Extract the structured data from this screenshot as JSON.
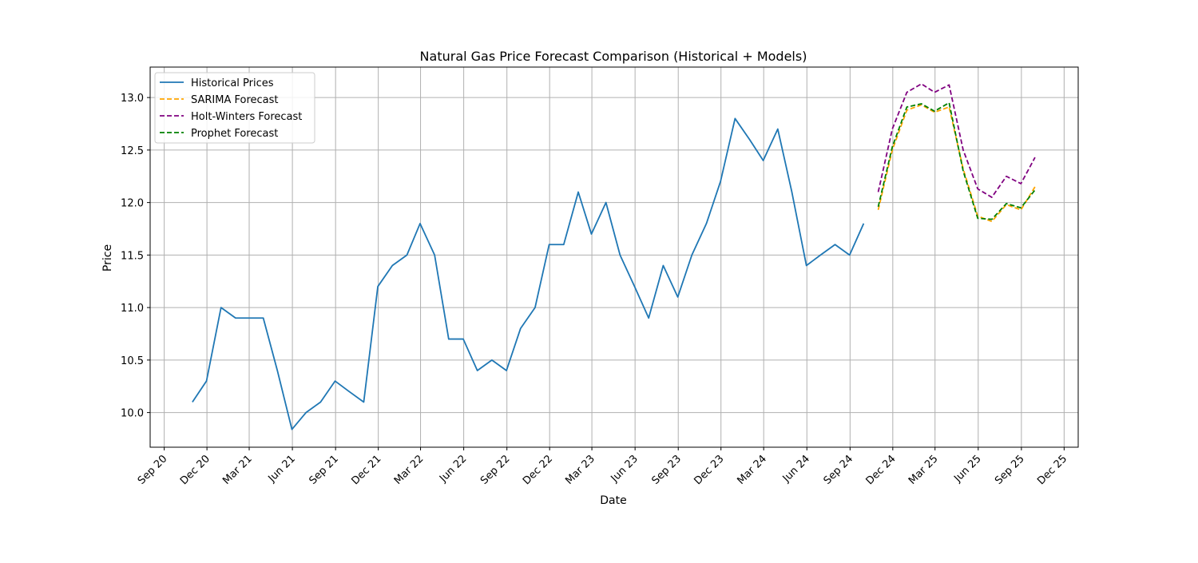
{
  "chart_data": {
    "type": "line",
    "title": "Natural Gas Price Forecast Comparison (Historical + Models)",
    "xlabel": "Date",
    "ylabel": "Price",
    "xlim": [
      "2020-08-02",
      "2025-12-31"
    ],
    "ylim": [
      9.67,
      13.29
    ],
    "grid": true,
    "legend_position": "top-left",
    "x_ticks": [
      "2020-09-01",
      "2020-12-01",
      "2021-03-01",
      "2021-06-01",
      "2021-09-01",
      "2021-12-01",
      "2022-03-01",
      "2022-06-01",
      "2022-09-01",
      "2022-12-01",
      "2023-03-01",
      "2023-06-01",
      "2023-09-01",
      "2023-12-01",
      "2024-03-01",
      "2024-06-01",
      "2024-09-01",
      "2024-12-01",
      "2025-03-01",
      "2025-06-01",
      "2025-09-01",
      "2025-12-01"
    ],
    "x_tick_labels": [
      "Sep 20",
      "Dec 20",
      "Mar 21",
      "Jun 21",
      "Sep 21",
      "Dec 21",
      "Mar 22",
      "Jun 22",
      "Sep 22",
      "Dec 22",
      "Mar 23",
      "Jun 23",
      "Sep 23",
      "Dec 23",
      "Mar 24",
      "Jun 24",
      "Sep 24",
      "Dec 24",
      "Mar 25",
      "Jun 25",
      "Sep 25",
      "Dec 25"
    ],
    "y_ticks": [
      10.0,
      10.5,
      11.0,
      11.5,
      12.0,
      12.5,
      13.0
    ],
    "y_tick_labels": [
      "10.0",
      "10.5",
      "11.0",
      "11.5",
      "12.0",
      "12.5",
      "13.0"
    ],
    "series": [
      {
        "name": "Historical Prices",
        "color": "#1f77b4",
        "dash": "solid",
        "x": [
          "2020-10-31",
          "2020-11-30",
          "2020-12-31",
          "2021-01-31",
          "2021-02-28",
          "2021-03-31",
          "2021-04-30",
          "2021-05-31",
          "2021-06-30",
          "2021-07-31",
          "2021-08-31",
          "2021-09-30",
          "2021-10-31",
          "2021-11-30",
          "2021-12-31",
          "2022-01-31",
          "2022-02-28",
          "2022-03-31",
          "2022-04-30",
          "2022-05-31",
          "2022-06-30",
          "2022-07-31",
          "2022-08-31",
          "2022-09-30",
          "2022-10-31",
          "2022-11-30",
          "2022-12-31",
          "2023-01-31",
          "2023-02-28",
          "2023-03-31",
          "2023-04-30",
          "2023-05-31",
          "2023-06-30",
          "2023-07-31",
          "2023-08-31",
          "2023-09-30",
          "2023-10-31",
          "2023-11-30",
          "2023-12-31",
          "2024-01-31",
          "2024-02-29",
          "2024-03-31",
          "2024-04-30",
          "2024-05-31",
          "2024-06-30",
          "2024-07-31",
          "2024-08-31",
          "2024-09-30"
        ],
        "values": [
          10.1,
          10.3,
          11.0,
          10.9,
          10.9,
          10.9,
          10.4,
          9.84,
          10.0,
          10.1,
          10.3,
          10.2,
          10.1,
          11.2,
          11.4,
          11.5,
          11.8,
          11.5,
          10.7,
          10.7,
          10.4,
          10.5,
          10.4,
          10.8,
          11.0,
          11.6,
          11.6,
          12.1,
          11.7,
          12.0,
          11.5,
          11.2,
          10.9,
          11.4,
          11.1,
          11.5,
          11.8,
          12.2,
          12.8,
          12.6,
          12.4,
          12.7,
          12.1,
          11.4,
          11.5,
          11.6,
          11.5,
          11.8
        ]
      },
      {
        "name": "SARIMA Forecast",
        "color": "#ffa500",
        "dash": "dashed",
        "x": [
          "2024-10-31",
          "2024-11-30",
          "2024-12-31",
          "2025-01-31",
          "2025-02-28",
          "2025-03-31",
          "2025-04-30",
          "2025-05-31",
          "2025-06-30",
          "2025-07-31",
          "2025-08-31",
          "2025-09-30",
          "2025-10-31"
        ],
        "values": [
          11.93,
          12.5,
          12.88,
          12.93,
          12.86,
          12.91,
          12.32,
          11.87,
          11.82,
          11.98,
          11.93,
          12.15,
          null
        ]
      },
      {
        "name": "Holt-Winters Forecast",
        "color": "#800080",
        "dash": "dashed",
        "x": [
          "2024-10-31",
          "2024-11-30",
          "2024-12-31",
          "2025-01-31",
          "2025-02-28",
          "2025-03-31",
          "2025-04-30",
          "2025-05-31",
          "2025-06-30",
          "2025-07-31",
          "2025-08-31",
          "2025-09-30",
          "2025-10-31"
        ],
        "values": [
          12.1,
          12.7,
          13.05,
          13.13,
          13.05,
          13.12,
          12.5,
          12.13,
          12.05,
          12.25,
          12.18,
          12.43,
          null
        ]
      },
      {
        "name": "Prophet Forecast",
        "color": "#008000",
        "dash": "dashed",
        "x": [
          "2024-10-31",
          "2024-11-30",
          "2024-12-31",
          "2025-01-31",
          "2025-02-28",
          "2025-03-31",
          "2025-04-30",
          "2025-05-31",
          "2025-06-30",
          "2025-07-31",
          "2025-08-31",
          "2025-09-30",
          "2025-10-31"
        ],
        "values": [
          11.96,
          12.53,
          12.91,
          12.94,
          12.87,
          12.95,
          12.3,
          11.85,
          11.84,
          11.99,
          11.95,
          12.12,
          null
        ]
      }
    ]
  }
}
